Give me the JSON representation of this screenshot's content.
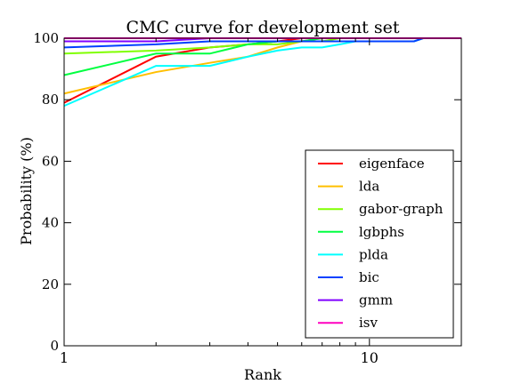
{
  "chart_data": {
    "type": "line",
    "title": "CMC curve for development set",
    "xlabel": "Rank",
    "ylabel": "Probability (%)",
    "xscale": "log",
    "xlim": [
      1,
      20
    ],
    "ylim": [
      0,
      100
    ],
    "xticks": [
      {
        "value": 1,
        "label": "1"
      },
      {
        "value": 10,
        "label": "10"
      }
    ],
    "xminor": [
      2,
      3,
      4,
      5,
      6,
      7,
      8,
      9,
      20
    ],
    "yticks": [
      0,
      20,
      40,
      60,
      80,
      100
    ],
    "grid": false,
    "legend_position": "lower-right",
    "x": [
      1,
      2,
      3,
      4,
      5,
      6,
      7,
      8,
      9,
      10,
      11,
      12,
      13,
      14,
      15,
      16,
      17,
      18,
      19,
      20
    ],
    "series": [
      {
        "name": "eigenface",
        "color": "#ff0000",
        "values": [
          79,
          94,
          97,
          98,
          99,
          100,
          100,
          100,
          100,
          100,
          100,
          100,
          100,
          100,
          100,
          100,
          100,
          100,
          100,
          100
        ]
      },
      {
        "name": "lda",
        "color": "#ffbf00",
        "values": [
          82,
          89,
          92,
          94,
          97,
          99,
          100,
          100,
          100,
          100,
          100,
          100,
          100,
          100,
          100,
          100,
          100,
          100,
          100,
          100
        ]
      },
      {
        "name": "gabor-graph",
        "color": "#80ff00",
        "values": [
          95,
          96,
          97,
          98,
          98,
          99,
          99,
          100,
          100,
          100,
          100,
          100,
          100,
          100,
          100,
          100,
          100,
          100,
          100,
          100
        ]
      },
      {
        "name": "lgbphs",
        "color": "#00ff40",
        "values": [
          88,
          95,
          95,
          98,
          99,
          99,
          100,
          100,
          100,
          100,
          100,
          100,
          100,
          100,
          100,
          100,
          100,
          100,
          100,
          100
        ]
      },
      {
        "name": "plda",
        "color": "#00ffff",
        "values": [
          78,
          91,
          91,
          94,
          96,
          97,
          97,
          98,
          99,
          99,
          99,
          99,
          99,
          99,
          100,
          100,
          100,
          100,
          100,
          100
        ]
      },
      {
        "name": "bic",
        "color": "#0040ff",
        "values": [
          97,
          98,
          99,
          99,
          99,
          99,
          99,
          99,
          99,
          99,
          99,
          99,
          99,
          99,
          100,
          100,
          100,
          100,
          100,
          100
        ]
      },
      {
        "name": "gmm",
        "color": "#8000ff",
        "values": [
          99,
          99,
          100,
          100,
          100,
          100,
          100,
          100,
          100,
          100,
          100,
          100,
          100,
          100,
          100,
          100,
          100,
          100,
          100,
          100
        ]
      },
      {
        "name": "isv",
        "color": "#ff00bf",
        "values": [
          100,
          100,
          100,
          100,
          100,
          100,
          100,
          100,
          100,
          100,
          100,
          100,
          100,
          100,
          100,
          100,
          100,
          100,
          100,
          100
        ]
      }
    ]
  }
}
